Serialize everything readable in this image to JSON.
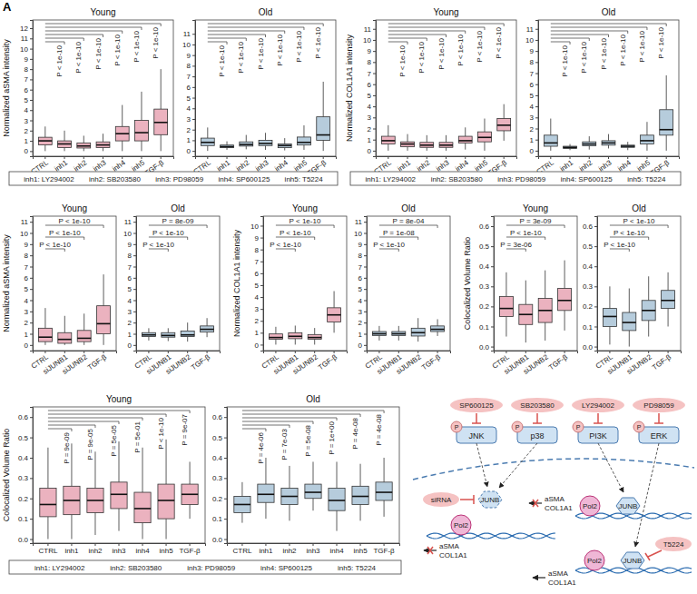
{
  "panel_label": "A",
  "chart_data": [
    {
      "type": "box",
      "title": "Young",
      "y_label": "Normalized aSMA intensity",
      "categories": [
        "CTRL",
        "inh1",
        "inh2",
        "inh3",
        "inh4",
        "inh5",
        "TGF-β"
      ],
      "median": [
        1.0,
        0.7,
        0.5,
        0.6,
        1.7,
        1.8,
        2.8
      ],
      "q1": [
        0.6,
        0.35,
        0.3,
        0.35,
        1.0,
        1.0,
        1.6
      ],
      "q3": [
        1.35,
        1.0,
        0.8,
        0.9,
        2.4,
        3.0,
        4.1
      ],
      "low": [
        0,
        0,
        0,
        0,
        0,
        0,
        0
      ],
      "high": [
        2.4,
        2.0,
        1.5,
        1.7,
        4.5,
        5.8,
        8.0
      ],
      "color": "#e8a5b4",
      "ylim": [
        -0.5,
        12.8
      ],
      "yticks": [
        0,
        1,
        2,
        3,
        4,
        5,
        6,
        7,
        8,
        9,
        10,
        11,
        12
      ],
      "annotations": [
        "P < 1e-10",
        "P < 1e-10",
        "P < 1e-10",
        "P < 1e-10",
        "P < 1e-10",
        "P < 1e-10"
      ]
    },
    {
      "type": "box",
      "title": "Old",
      "categories": [
        "CTRL",
        "inh1",
        "inh2",
        "inh3",
        "inh4",
        "inh5",
        "TGF-β"
      ],
      "median": [
        0.8,
        0.4,
        0.6,
        0.7,
        0.5,
        0.8,
        1.5
      ],
      "q1": [
        0.5,
        0.3,
        0.45,
        0.5,
        0.3,
        0.55,
        1.0
      ],
      "q3": [
        1.2,
        0.55,
        0.85,
        1.0,
        0.65,
        1.3,
        3.2
      ],
      "low": [
        0,
        0.1,
        0.15,
        0.1,
        0.05,
        0.1,
        0
      ],
      "high": [
        2.2,
        0.9,
        1.5,
        1.7,
        1.2,
        2.4,
        6.5
      ],
      "color": "#a9c3d6",
      "ylim": [
        -0.5,
        12.3
      ],
      "yticks": [
        0,
        1,
        2,
        3,
        4,
        5,
        6,
        7,
        8,
        9,
        10,
        11
      ],
      "annotations": [
        "P < 1e-10",
        "P < 1e-10",
        "P < 1e-10",
        "P < 1e-10",
        "P < 1e-10",
        "P < 1e-10"
      ]
    },
    {
      "type": "box",
      "title": "Young",
      "y_label": "Normalized COL1A1 intensity",
      "categories": [
        "CTRL",
        "inh1",
        "inh2",
        "inh3",
        "inh4",
        "inh5",
        "TGF-β"
      ],
      "median": [
        0.9,
        0.6,
        0.5,
        0.5,
        0.9,
        1.2,
        2.3
      ],
      "q1": [
        0.6,
        0.35,
        0.3,
        0.3,
        0.7,
        0.8,
        1.8
      ],
      "q3": [
        1.3,
        0.8,
        0.75,
        0.75,
        1.3,
        1.7,
        2.9
      ],
      "low": [
        0,
        0,
        0,
        0,
        0.1,
        0,
        0.9
      ],
      "high": [
        2.3,
        1.5,
        1.4,
        1.4,
        2.1,
        2.9,
        4.2
      ],
      "color": "#e8a5b4",
      "ylim": [
        -0.5,
        11.8
      ],
      "yticks": [
        0,
        1,
        2,
        3,
        4,
        5,
        6,
        7,
        8,
        9,
        10,
        11
      ],
      "annotations": [
        "P < 1e-10",
        "P < 1e-10",
        "P < 1e-10",
        "P < 1e-10",
        "P < 1e-10",
        "P < 1e-10"
      ]
    },
    {
      "type": "box",
      "title": "Old",
      "categories": [
        "CTRL",
        "inh1",
        "inh2",
        "inh3",
        "inh4",
        "inh5",
        "TGF-β"
      ],
      "median": [
        0.7,
        0.3,
        0.6,
        0.7,
        0.4,
        0.9,
        1.9
      ],
      "q1": [
        0.4,
        0.2,
        0.45,
        0.5,
        0.3,
        0.6,
        1.4
      ],
      "q3": [
        1.4,
        0.4,
        0.8,
        0.9,
        0.5,
        1.4,
        3.7
      ],
      "low": [
        0,
        0.05,
        0.1,
        0.2,
        0.05,
        0,
        0
      ],
      "high": [
        2.9,
        0.6,
        1.3,
        1.5,
        0.8,
        2.6,
        6.8
      ],
      "color": "#a9c3d6",
      "ylim": [
        -0.5,
        11.8
      ],
      "yticks": [
        0,
        1,
        2,
        3,
        4,
        5,
        6,
        7,
        8,
        9,
        10,
        11
      ],
      "annotations": [
        "P < 1e-10",
        "P < 1e-10",
        "P < 1e-10",
        "P < 1e-10",
        "P < 1e-10",
        "P < 1e-10"
      ]
    },
    {
      "type": "box",
      "title": "Young",
      "y_label": "Normalized aSMA intensity",
      "categories": [
        "CTRL",
        "siJUNB1",
        "siJUNB2",
        "TGF-β"
      ],
      "median": [
        0.7,
        0.5,
        0.6,
        1.9
      ],
      "q1": [
        0.3,
        0.15,
        0.3,
        1.0
      ],
      "q3": [
        1.5,
        1.1,
        1.3,
        3.5
      ],
      "low": [
        0,
        0,
        0,
        0
      ],
      "high": [
        3.3,
        2.6,
        2.8,
        6.3
      ],
      "color": "#e8a5b4",
      "ylim": [
        -0.5,
        11.5
      ],
      "yticks": [
        0,
        1,
        2,
        3,
        4,
        5,
        6,
        7,
        8,
        9,
        10,
        11
      ],
      "annotations": [
        "P < 1e-10",
        "P < 1e-10",
        "P < 1e-10"
      ]
    },
    {
      "type": "box",
      "title": "Old",
      "categories": [
        "CTRL",
        "siJUNB1",
        "siJUNB2",
        "TGF-β"
      ],
      "median": [
        0.9,
        0.85,
        0.9,
        1.4
      ],
      "q1": [
        0.75,
        0.7,
        0.75,
        1.15
      ],
      "q3": [
        1.1,
        1.1,
        1.25,
        1.7
      ],
      "low": [
        0.4,
        0.35,
        0.3,
        0.7
      ],
      "high": [
        1.5,
        1.5,
        2.0,
        2.4
      ],
      "color": "#a9c3d6",
      "ylim": [
        -0.5,
        11.5
      ],
      "yticks": [
        0,
        1,
        2,
        3,
        4,
        5,
        6,
        7,
        8,
        9,
        10,
        11
      ],
      "annotations": [
        "P < 1e-10",
        "P < 1e-10",
        "P = 8e-09"
      ]
    },
    {
      "type": "box",
      "title": "Young",
      "y_label": "Normalized COL1A1 intensity",
      "categories": [
        "CTRL",
        "siJUNB1",
        "siJUNB2",
        "TGF-β"
      ],
      "median": [
        0.6,
        0.7,
        0.6,
        2.5
      ],
      "q1": [
        0.45,
        0.5,
        0.45,
        1.9
      ],
      "q3": [
        0.9,
        1.0,
        0.85,
        3.1
      ],
      "low": [
        0,
        0,
        0,
        1.0
      ],
      "high": [
        1.5,
        1.6,
        1.4,
        4.5
      ],
      "color": "#e8a5b4",
      "ylim": [
        -0.5,
        10.8
      ],
      "yticks": [
        0,
        1,
        2,
        3,
        4,
        5,
        6,
        7,
        8,
        9,
        10
      ],
      "annotations": [
        "P < 1e-10",
        "P < 1e-10",
        "P < 1e-10"
      ]
    },
    {
      "type": "box",
      "title": "Old",
      "categories": [
        "CTRL",
        "siJUNB1",
        "siJUNB2",
        "TGF-β"
      ],
      "median": [
        1.0,
        1.0,
        1.1,
        1.4
      ],
      "q1": [
        0.85,
        0.85,
        0.8,
        1.2
      ],
      "q3": [
        1.2,
        1.2,
        1.5,
        1.7
      ],
      "low": [
        0.4,
        0.4,
        0.3,
        0.8
      ],
      "high": [
        1.7,
        1.7,
        2.4,
        2.3
      ],
      "color": "#a9c3d6",
      "ylim": [
        -0.5,
        11.5
      ],
      "yticks": [
        0,
        1,
        2,
        3,
        4,
        5,
        6,
        7,
        8,
        9,
        10,
        11
      ],
      "annotations": [
        "P < 1e-10",
        "P = 1e-08",
        "P = 8e-04"
      ]
    },
    {
      "type": "box",
      "title": "Young",
      "y_label": "Colocalized Volume Ratio",
      "categories": [
        "CTRL",
        "siJUNB1",
        "siJUNB2",
        "TGF-β"
      ],
      "median": [
        0.19,
        0.16,
        0.18,
        0.23
      ],
      "q1": [
        0.15,
        0.11,
        0.12,
        0.18
      ],
      "q3": [
        0.25,
        0.21,
        0.24,
        0.29
      ],
      "low": [
        0.05,
        0.02,
        0.03,
        0.08
      ],
      "high": [
        0.37,
        0.33,
        0.38,
        0.43
      ],
      "color": "#e8a5b4",
      "ylim": [
        -0.02,
        0.65
      ],
      "yticks": [
        {
          "value": 0,
          "label": "0.0"
        },
        0.1,
        0.2,
        0.3,
        0.4,
        0.5,
        0.6
      ],
      "annotations": [
        "P = 3e-06",
        "P < 1e-10",
        "P = 3e-09"
      ]
    },
    {
      "type": "box",
      "title": "Old",
      "categories": [
        "CTRL",
        "siJUNB1",
        "siJUNB2",
        "TGF-β"
      ],
      "median": [
        0.15,
        0.12,
        0.18,
        0.23
      ],
      "q1": [
        0.1,
        0.08,
        0.13,
        0.19
      ],
      "q3": [
        0.19,
        0.17,
        0.23,
        0.28
      ],
      "low": [
        0.01,
        0.0,
        0.05,
        0.1
      ],
      "high": [
        0.3,
        0.29,
        0.35,
        0.37
      ],
      "color": "#a9c3d6",
      "ylim": [
        -0.02,
        0.65
      ],
      "yticks": [
        {
          "value": 0,
          "label": "0.0"
        },
        0.1,
        0.2,
        0.3,
        0.4,
        0.5,
        0.6
      ],
      "annotations": [
        "P < 1e-10",
        "P < 1e-10",
        "P < 1e-10"
      ]
    },
    {
      "type": "box",
      "title": "Young",
      "y_label": "Colocalized Volume Ratio",
      "categories": [
        "CTRL",
        "inh1",
        "inh2",
        "inh3",
        "inh4",
        "inh5",
        "TGF-β"
      ],
      "median": [
        0.17,
        0.19,
        0.19,
        0.22,
        0.15,
        0.19,
        0.22
      ],
      "q1": [
        0.11,
        0.12,
        0.13,
        0.15,
        0.08,
        0.1,
        0.17
      ],
      "q3": [
        0.25,
        0.26,
        0.25,
        0.28,
        0.23,
        0.27,
        0.27
      ],
      "low": [
        0,
        0,
        0.02,
        0.04,
        0,
        0,
        0.1
      ],
      "high": [
        0.45,
        0.47,
        0.43,
        0.48,
        0.45,
        0.49,
        0.38
      ],
      "color": "#e8a5b4",
      "ylim": [
        -0.02,
        0.65
      ],
      "yticks": [
        {
          "value": 0,
          "label": "0.0"
        },
        0.1,
        0.2,
        0.3,
        0.4,
        0.5,
        0.6
      ],
      "annotations": [
        "P = 9e-09",
        "P = 9e-05",
        "P = 5e-05",
        "P = 5e-01",
        "P < 1e-10",
        "P = 9e-07"
      ]
    },
    {
      "type": "box",
      "title": "Old",
      "categories": [
        "CTRL",
        "inh1",
        "inh2",
        "inh3",
        "inh4",
        "inh5",
        "TGF-β"
      ],
      "median": [
        0.17,
        0.22,
        0.21,
        0.23,
        0.19,
        0.21,
        0.23
      ],
      "q1": [
        0.13,
        0.18,
        0.17,
        0.2,
        0.14,
        0.17,
        0.19
      ],
      "q3": [
        0.21,
        0.27,
        0.25,
        0.27,
        0.25,
        0.26,
        0.28
      ],
      "low": [
        0.08,
        0.1,
        0.09,
        0.14,
        0.04,
        0.09,
        0.11
      ],
      "high": [
        0.28,
        0.4,
        0.36,
        0.38,
        0.38,
        0.37,
        0.4
      ],
      "color": "#a9c3d6",
      "ylim": [
        -0.02,
        0.65
      ],
      "yticks": [
        {
          "value": 0,
          "label": "0.0"
        },
        0.1,
        0.2,
        0.3,
        0.4,
        0.5,
        0.6
      ],
      "annotations": [
        "P = 4e-06",
        "P = 7e-03",
        "P = 5e-08",
        "P = 1e+00",
        "P = 4e-08",
        "P = 4e-08"
      ]
    }
  ],
  "inhibitor_keys": [
    [
      "inh1: LY294002",
      "inh2: SB203580",
      "inh3: PD98059",
      "inh4: SP600125",
      "inh5: T5224"
    ],
    [
      "inh1: LY294002",
      "inh2: SB203580",
      "inh3: PD98059",
      "inh4: SP600125",
      "inh5: T5224"
    ],
    [
      "inh1: LY294002",
      "inh2: SB203580",
      "inh3: PD98059",
      "inh4: SP600125",
      "inh5: T5224"
    ]
  ],
  "diagram": {
    "inhibitors": [
      "SP600125",
      "SB203580",
      "LY294002",
      "PD98059"
    ],
    "kinases": [
      "JNK",
      "p38",
      "PI3K",
      "ERK"
    ],
    "phospho": [
      "P",
      "P",
      "P",
      "P"
    ],
    "sirna_branch": {
      "sirna": "siRNA",
      "factor": "JUNB",
      "polymerase": "Pol2",
      "genes": [
        "aSMA",
        "COL1A1"
      ]
    },
    "erk_branch": {
      "polymerase": "Pol2",
      "factor": "JUNB",
      "genes": [
        "aSMA",
        "COL1A1"
      ]
    },
    "t5224_branch": {
      "polymerase": "Pol2",
      "factor": "JUNB",
      "inhibitor": "T5224",
      "genes": [
        "aSMA",
        "COL1A1"
      ]
    }
  }
}
